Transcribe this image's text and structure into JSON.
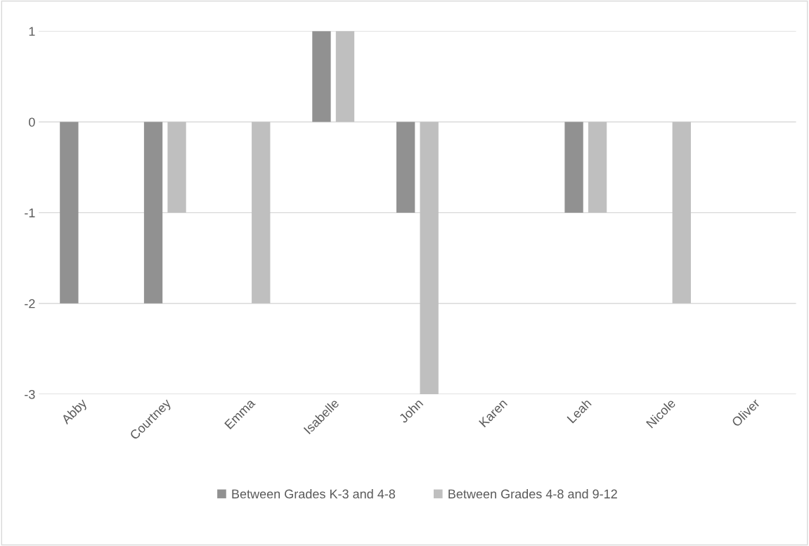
{
  "chart_data": {
    "type": "bar",
    "categories": [
      "Abby",
      "Courtney",
      "Emma",
      "Isabelle",
      "John",
      "Karen",
      "Leah",
      "Nicole",
      "Oliver"
    ],
    "series": [
      {
        "name": "Between Grades K-3 and 4-8",
        "color": "#919191",
        "values": [
          -2,
          -2,
          0,
          1,
          -1,
          0,
          -1,
          0,
          0
        ]
      },
      {
        "name": "Between Grades 4-8 and 9-12",
        "color": "#bfbfbf",
        "values": [
          0,
          -1,
          -2,
          1,
          -3,
          0,
          -1,
          -2,
          0
        ]
      }
    ],
    "ylim": [
      -3,
      1
    ],
    "yticks": [
      -3,
      -2,
      -1,
      0,
      1
    ],
    "grid": "y",
    "legend": "bottom"
  }
}
